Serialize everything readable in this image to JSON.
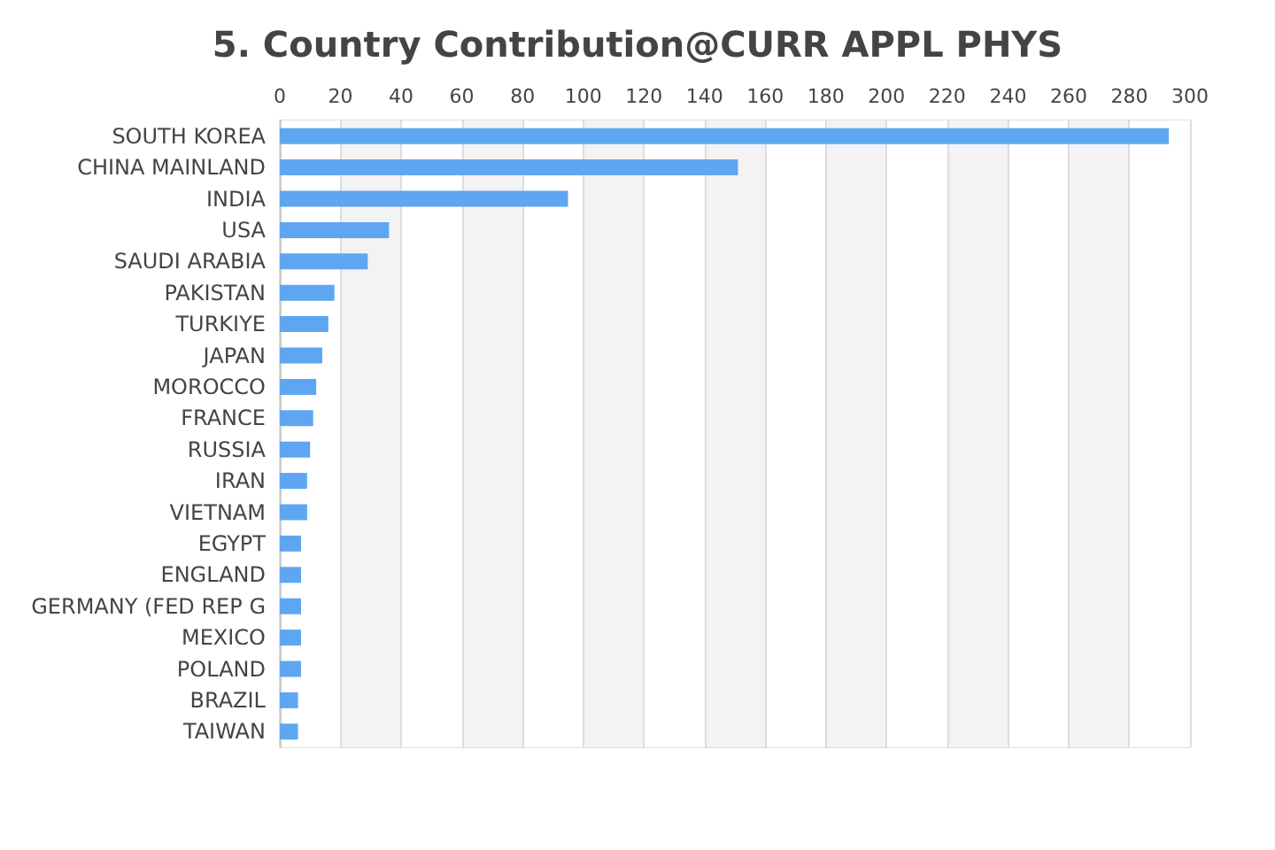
{
  "chart_data": {
    "type": "bar",
    "orientation": "horizontal",
    "title": "5. Country Contribution@CURR APPL PHYS",
    "categories": [
      "SOUTH KOREA",
      "CHINA MAINLAND",
      "INDIA",
      "USA",
      "SAUDI ARABIA",
      "PAKISTAN",
      "TURKIYE",
      "JAPAN",
      "MOROCCO",
      "FRANCE",
      "RUSSIA",
      "IRAN",
      "VIETNAM",
      "EGYPT",
      "ENGLAND",
      "GERMANY (FED REP G",
      "MEXICO",
      "POLAND",
      "BRAZIL",
      "TAIWAN"
    ],
    "values": [
      293,
      151,
      95,
      36,
      29,
      18,
      16,
      14,
      12,
      11,
      10,
      9,
      9,
      7,
      7,
      7,
      7,
      7,
      6,
      6
    ],
    "color": "#5ea6f2",
    "xlim": [
      0,
      300
    ],
    "xticks": [
      0,
      20,
      40,
      60,
      80,
      100,
      120,
      140,
      160,
      180,
      200,
      220,
      240,
      260,
      280,
      300
    ],
    "grid": true
  }
}
